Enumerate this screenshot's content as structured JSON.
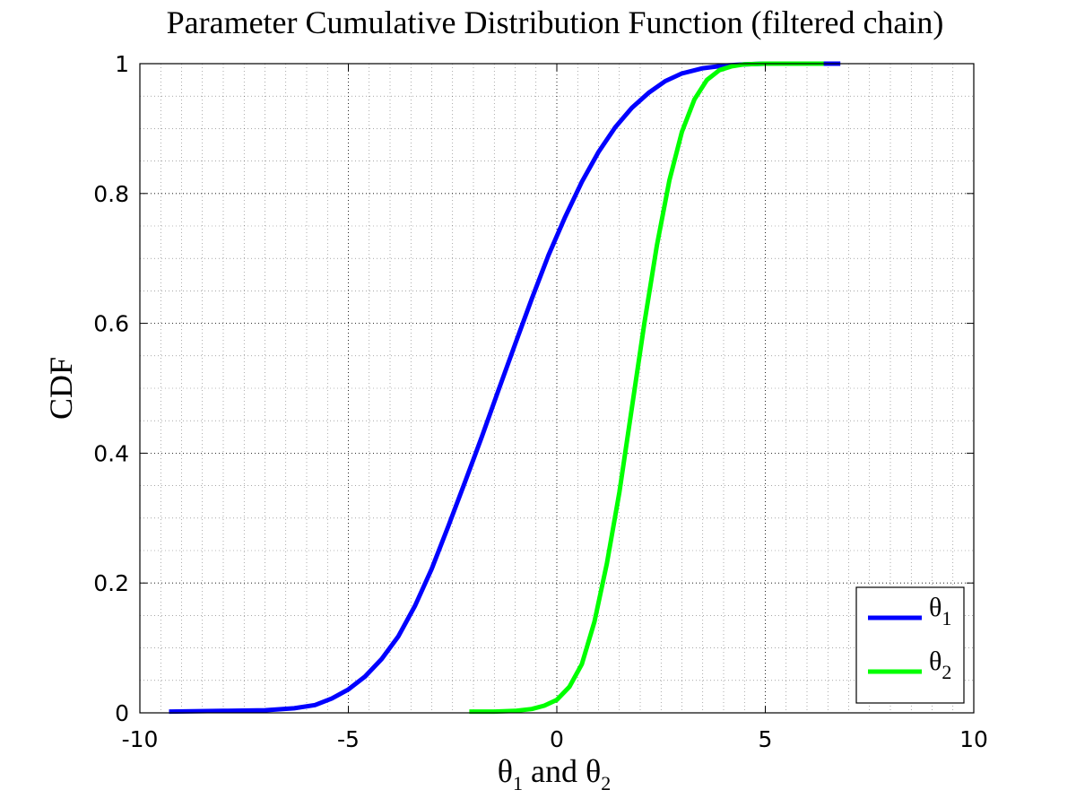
{
  "chart_data": {
    "type": "line",
    "title": "Parameter Cumulative Distribution Function (filtered chain)",
    "xlabel": "θ1 and θ2",
    "ylabel": "CDF",
    "xlim": [
      -10,
      10
    ],
    "ylim": [
      0,
      1
    ],
    "xticks": [
      -10,
      -5,
      0,
      5,
      10
    ],
    "yticks": [
      0,
      0.2,
      0.4,
      0.6,
      0.8,
      1
    ],
    "xtick_labels": [
      "-10",
      "-5",
      "0",
      "5",
      "10"
    ],
    "ytick_labels": [
      "0",
      "0.2",
      "0.4",
      "0.6",
      "0.8",
      "1"
    ],
    "grid": true,
    "minor_grid": true,
    "legend_position": "bottom-right",
    "series": [
      {
        "name": "θ1",
        "color": "#0000ff",
        "x": [
          -9.3,
          -8.0,
          -7.0,
          -6.3,
          -5.8,
          -5.4,
          -5.0,
          -4.6,
          -4.2,
          -3.8,
          -3.4,
          -3.0,
          -2.6,
          -2.2,
          -1.8,
          -1.4,
          -1.0,
          -0.6,
          -0.2,
          0.2,
          0.6,
          1.0,
          1.4,
          1.8,
          2.2,
          2.6,
          3.0,
          3.5,
          4.0,
          4.5,
          5.0,
          6.0,
          6.8
        ],
        "y": [
          0.002,
          0.003,
          0.004,
          0.007,
          0.012,
          0.022,
          0.036,
          0.056,
          0.083,
          0.118,
          0.165,
          0.222,
          0.288,
          0.356,
          0.425,
          0.497,
          0.568,
          0.638,
          0.705,
          0.764,
          0.818,
          0.864,
          0.902,
          0.932,
          0.955,
          0.973,
          0.985,
          0.993,
          0.997,
          0.999,
          1.0,
          1.0,
          1.0
        ]
      },
      {
        "name": "θ2",
        "color": "#00ff00",
        "x": [
          -2.1,
          -1.5,
          -1.0,
          -0.6,
          -0.3,
          0.0,
          0.3,
          0.6,
          0.9,
          1.2,
          1.5,
          1.8,
          2.1,
          2.4,
          2.7,
          3.0,
          3.3,
          3.6,
          3.9,
          4.2,
          4.5,
          5.0,
          5.5,
          6.0,
          6.4
        ],
        "y": [
          0.002,
          0.002,
          0.003,
          0.006,
          0.011,
          0.02,
          0.04,
          0.075,
          0.14,
          0.23,
          0.34,
          0.47,
          0.6,
          0.72,
          0.82,
          0.895,
          0.945,
          0.975,
          0.99,
          0.996,
          0.999,
          1.0,
          1.0,
          1.0,
          1.0
        ]
      }
    ]
  },
  "legend": {
    "items": [
      {
        "symbol": "θ",
        "sub": "1",
        "color": "#0000ff"
      },
      {
        "symbol": "θ",
        "sub": "2",
        "color": "#00ff00"
      }
    ]
  },
  "xlabel_parts": {
    "t1": "θ",
    "s1": "1",
    "mid": " and ",
    "t2": "θ",
    "s2": "2"
  }
}
